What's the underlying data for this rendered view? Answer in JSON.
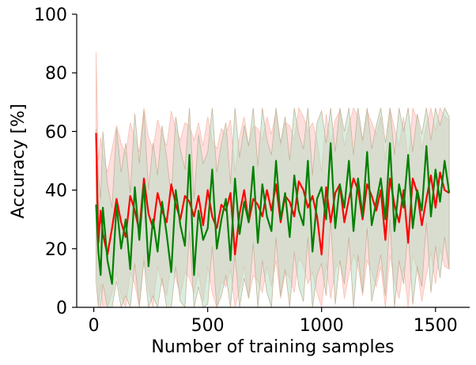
{
  "chart_data": {
    "type": "line",
    "title": "",
    "xlabel": "Number of training samples",
    "ylabel": "Accuracy [%]",
    "xlim": [
      -75,
      1650
    ],
    "ylim": [
      0,
      100
    ],
    "x_ticks": [
      0,
      500,
      1000,
      1500
    ],
    "y_ticks": [
      0,
      20,
      40,
      60,
      80,
      100
    ],
    "grid": false,
    "legend": "none",
    "series": [
      {
        "color": "#ff0000",
        "band_color": "#ffb6b6",
        "x": [
          10,
          20,
          30,
          40,
          60,
          80,
          100,
          120,
          140,
          160,
          180,
          200,
          220,
          240,
          260,
          280,
          300,
          320,
          340,
          360,
          380,
          400,
          420,
          440,
          460,
          480,
          500,
          520,
          540,
          560,
          580,
          600,
          620,
          640,
          660,
          680,
          700,
          720,
          740,
          760,
          780,
          800,
          820,
          840,
          860,
          880,
          900,
          920,
          940,
          960,
          980,
          1000,
          1020,
          1040,
          1060,
          1080,
          1100,
          1120,
          1140,
          1160,
          1180,
          1200,
          1220,
          1240,
          1260,
          1280,
          1300,
          1320,
          1340,
          1360,
          1380,
          1400,
          1420,
          1440,
          1460,
          1480,
          1500,
          1520,
          1540,
          1560
        ],
        "mean": [
          59.5,
          22,
          33,
          25,
          18,
          27,
          37,
          29,
          24,
          38,
          33,
          26,
          44,
          32,
          27,
          39,
          33,
          29,
          42,
          35,
          30,
          38,
          36,
          31,
          38,
          28,
          40,
          31,
          27,
          35,
          33,
          39,
          18,
          32,
          40,
          29,
          37,
          35,
          31,
          40,
          33,
          42,
          29,
          38,
          36,
          31,
          43,
          40,
          34,
          38,
          31,
          18,
          41,
          29,
          39,
          42,
          29,
          37,
          44,
          40,
          30,
          42,
          38,
          33,
          40,
          23,
          44,
          35,
          29,
          40,
          22,
          44,
          39,
          28,
          37,
          45,
          34,
          46,
          40,
          39
        ],
        "band_low": [
          32,
          0,
          8,
          0,
          0,
          5,
          12,
          4,
          0,
          12,
          8,
          0,
          18,
          6,
          0,
          14,
          8,
          4,
          16,
          10,
          4,
          12,
          10,
          5,
          12,
          2,
          14,
          5,
          0,
          9,
          7,
          13,
          0,
          6,
          14,
          3,
          11,
          9,
          5,
          14,
          7,
          16,
          3,
          12,
          10,
          5,
          17,
          14,
          8,
          12,
          5,
          0,
          15,
          3,
          13,
          16,
          3,
          11,
          18,
          14,
          4,
          16,
          12,
          7,
          14,
          0,
          18,
          9,
          3,
          14,
          0,
          18,
          13,
          2,
          11,
          19,
          8,
          20,
          14,
          13
        ],
        "band_high": [
          87,
          50,
          58,
          52,
          46,
          54,
          62,
          56,
          52,
          63,
          58,
          53,
          68,
          58,
          54,
          64,
          59,
          55,
          67,
          61,
          57,
          63,
          62,
          57,
          63,
          55,
          65,
          57,
          54,
          61,
          59,
          64,
          46,
          58,
          65,
          55,
          62,
          61,
          57,
          65,
          59,
          67,
          55,
          63,
          62,
          57,
          68,
          65,
          60,
          63,
          57,
          46,
          66,
          55,
          64,
          67,
          55,
          62,
          68,
          65,
          56,
          67,
          63,
          59,
          65,
          50,
          68,
          61,
          55,
          65,
          49,
          68,
          64,
          54,
          62,
          68,
          60,
          68,
          65,
          64
        ]
      },
      {
        "color": "#008000",
        "band_color": "#b3dcc0",
        "x": [
          10,
          20,
          30,
          40,
          60,
          80,
          100,
          120,
          140,
          160,
          180,
          200,
          220,
          240,
          260,
          280,
          300,
          320,
          340,
          360,
          380,
          400,
          420,
          440,
          460,
          480,
          500,
          520,
          540,
          560,
          580,
          600,
          620,
          640,
          660,
          680,
          700,
          720,
          740,
          760,
          780,
          800,
          820,
          840,
          860,
          880,
          900,
          920,
          940,
          960,
          980,
          1000,
          1020,
          1040,
          1060,
          1080,
          1100,
          1120,
          1140,
          1160,
          1180,
          1200,
          1220,
          1240,
          1260,
          1280,
          1300,
          1320,
          1340,
          1360,
          1380,
          1400,
          1420,
          1440,
          1460,
          1480,
          1500,
          1520,
          1540,
          1560
        ],
        "mean": [
          35,
          19,
          11,
          34,
          16,
          8,
          35,
          20,
          30,
          13,
          41,
          23,
          42,
          14,
          30,
          19,
          36,
          25,
          12,
          40,
          28,
          21,
          52,
          11,
          33,
          23,
          27,
          47,
          20,
          30,
          37,
          16,
          44,
          25,
          36,
          29,
          48,
          22,
          42,
          31,
          26,
          50,
          30,
          39,
          24,
          45,
          33,
          28,
          50,
          19,
          37,
          41,
          30,
          56,
          27,
          42,
          34,
          50,
          26,
          44,
          31,
          53,
          28,
          36,
          44,
          30,
          56,
          26,
          42,
          34,
          52,
          27,
          40,
          33,
          55,
          31,
          47,
          36,
          50,
          39
        ],
        "band_low": [
          9,
          0,
          0,
          8,
          0,
          0,
          9,
          0,
          4,
          0,
          15,
          0,
          16,
          0,
          4,
          0,
          10,
          0,
          0,
          14,
          2,
          0,
          26,
          0,
          7,
          0,
          1,
          21,
          0,
          4,
          11,
          0,
          18,
          0,
          10,
          3,
          22,
          0,
          16,
          5,
          0,
          24,
          4,
          13,
          0,
          19,
          7,
          2,
          24,
          0,
          11,
          15,
          4,
          30,
          1,
          16,
          8,
          24,
          0,
          18,
          5,
          27,
          2,
          10,
          18,
          4,
          30,
          0,
          16,
          8,
          26,
          1,
          14,
          7,
          29,
          5,
          21,
          10,
          24,
          13
        ],
        "band_high": [
          61,
          45,
          37,
          60,
          42,
          34,
          61,
          46,
          56,
          39,
          66,
          49,
          67,
          40,
          56,
          45,
          62,
          51,
          38,
          65,
          54,
          47,
          68,
          37,
          59,
          49,
          53,
          68,
          46,
          56,
          63,
          42,
          68,
          51,
          62,
          55,
          68,
          48,
          68,
          57,
          52,
          68,
          56,
          65,
          50,
          68,
          59,
          54,
          68,
          45,
          63,
          67,
          56,
          68,
          53,
          68,
          60,
          68,
          52,
          68,
          57,
          68,
          54,
          62,
          68,
          56,
          68,
          52,
          68,
          60,
          68,
          53,
          66,
          59,
          68,
          57,
          68,
          62,
          68,
          65
        ]
      }
    ]
  }
}
